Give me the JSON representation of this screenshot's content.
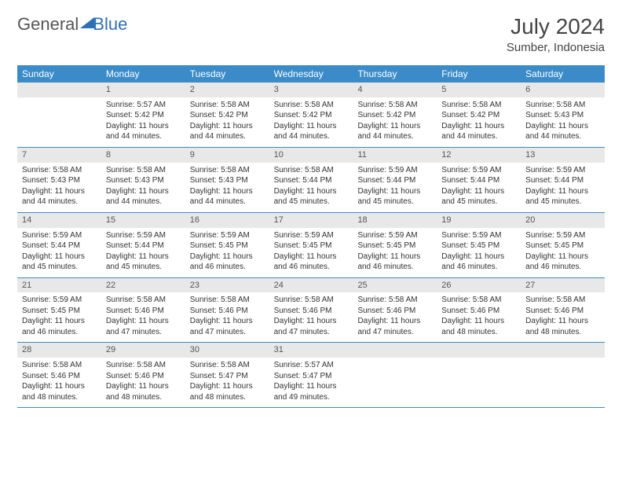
{
  "logo": {
    "general": "General",
    "blue": "Blue"
  },
  "header": {
    "title": "July 2024",
    "location": "Sumber, Indonesia"
  },
  "day_headers": [
    "Sunday",
    "Monday",
    "Tuesday",
    "Wednesday",
    "Thursday",
    "Friday",
    "Saturday"
  ],
  "colors": {
    "header_bg": "#3b8bc9",
    "header_text": "#ffffff",
    "daynum_bg": "#e8e8e8",
    "rule": "#3b8bc9",
    "logo_blue": "#2e6fb5"
  },
  "weeks": [
    [
      {
        "num": "",
        "sunrise": "",
        "sunset": "",
        "daylight1": "",
        "daylight2": "",
        "empty": true
      },
      {
        "num": "1",
        "sunrise": "Sunrise: 5:57 AM",
        "sunset": "Sunset: 5:42 PM",
        "daylight1": "Daylight: 11 hours",
        "daylight2": "and 44 minutes."
      },
      {
        "num": "2",
        "sunrise": "Sunrise: 5:58 AM",
        "sunset": "Sunset: 5:42 PM",
        "daylight1": "Daylight: 11 hours",
        "daylight2": "and 44 minutes."
      },
      {
        "num": "3",
        "sunrise": "Sunrise: 5:58 AM",
        "sunset": "Sunset: 5:42 PM",
        "daylight1": "Daylight: 11 hours",
        "daylight2": "and 44 minutes."
      },
      {
        "num": "4",
        "sunrise": "Sunrise: 5:58 AM",
        "sunset": "Sunset: 5:42 PM",
        "daylight1": "Daylight: 11 hours",
        "daylight2": "and 44 minutes."
      },
      {
        "num": "5",
        "sunrise": "Sunrise: 5:58 AM",
        "sunset": "Sunset: 5:42 PM",
        "daylight1": "Daylight: 11 hours",
        "daylight2": "and 44 minutes."
      },
      {
        "num": "6",
        "sunrise": "Sunrise: 5:58 AM",
        "sunset": "Sunset: 5:43 PM",
        "daylight1": "Daylight: 11 hours",
        "daylight2": "and 44 minutes."
      }
    ],
    [
      {
        "num": "7",
        "sunrise": "Sunrise: 5:58 AM",
        "sunset": "Sunset: 5:43 PM",
        "daylight1": "Daylight: 11 hours",
        "daylight2": "and 44 minutes."
      },
      {
        "num": "8",
        "sunrise": "Sunrise: 5:58 AM",
        "sunset": "Sunset: 5:43 PM",
        "daylight1": "Daylight: 11 hours",
        "daylight2": "and 44 minutes."
      },
      {
        "num": "9",
        "sunrise": "Sunrise: 5:58 AM",
        "sunset": "Sunset: 5:43 PM",
        "daylight1": "Daylight: 11 hours",
        "daylight2": "and 44 minutes."
      },
      {
        "num": "10",
        "sunrise": "Sunrise: 5:58 AM",
        "sunset": "Sunset: 5:44 PM",
        "daylight1": "Daylight: 11 hours",
        "daylight2": "and 45 minutes."
      },
      {
        "num": "11",
        "sunrise": "Sunrise: 5:59 AM",
        "sunset": "Sunset: 5:44 PM",
        "daylight1": "Daylight: 11 hours",
        "daylight2": "and 45 minutes."
      },
      {
        "num": "12",
        "sunrise": "Sunrise: 5:59 AM",
        "sunset": "Sunset: 5:44 PM",
        "daylight1": "Daylight: 11 hours",
        "daylight2": "and 45 minutes."
      },
      {
        "num": "13",
        "sunrise": "Sunrise: 5:59 AM",
        "sunset": "Sunset: 5:44 PM",
        "daylight1": "Daylight: 11 hours",
        "daylight2": "and 45 minutes."
      }
    ],
    [
      {
        "num": "14",
        "sunrise": "Sunrise: 5:59 AM",
        "sunset": "Sunset: 5:44 PM",
        "daylight1": "Daylight: 11 hours",
        "daylight2": "and 45 minutes."
      },
      {
        "num": "15",
        "sunrise": "Sunrise: 5:59 AM",
        "sunset": "Sunset: 5:44 PM",
        "daylight1": "Daylight: 11 hours",
        "daylight2": "and 45 minutes."
      },
      {
        "num": "16",
        "sunrise": "Sunrise: 5:59 AM",
        "sunset": "Sunset: 5:45 PM",
        "daylight1": "Daylight: 11 hours",
        "daylight2": "and 46 minutes."
      },
      {
        "num": "17",
        "sunrise": "Sunrise: 5:59 AM",
        "sunset": "Sunset: 5:45 PM",
        "daylight1": "Daylight: 11 hours",
        "daylight2": "and 46 minutes."
      },
      {
        "num": "18",
        "sunrise": "Sunrise: 5:59 AM",
        "sunset": "Sunset: 5:45 PM",
        "daylight1": "Daylight: 11 hours",
        "daylight2": "and 46 minutes."
      },
      {
        "num": "19",
        "sunrise": "Sunrise: 5:59 AM",
        "sunset": "Sunset: 5:45 PM",
        "daylight1": "Daylight: 11 hours",
        "daylight2": "and 46 minutes."
      },
      {
        "num": "20",
        "sunrise": "Sunrise: 5:59 AM",
        "sunset": "Sunset: 5:45 PM",
        "daylight1": "Daylight: 11 hours",
        "daylight2": "and 46 minutes."
      }
    ],
    [
      {
        "num": "21",
        "sunrise": "Sunrise: 5:59 AM",
        "sunset": "Sunset: 5:45 PM",
        "daylight1": "Daylight: 11 hours",
        "daylight2": "and 46 minutes."
      },
      {
        "num": "22",
        "sunrise": "Sunrise: 5:58 AM",
        "sunset": "Sunset: 5:46 PM",
        "daylight1": "Daylight: 11 hours",
        "daylight2": "and 47 minutes."
      },
      {
        "num": "23",
        "sunrise": "Sunrise: 5:58 AM",
        "sunset": "Sunset: 5:46 PM",
        "daylight1": "Daylight: 11 hours",
        "daylight2": "and 47 minutes."
      },
      {
        "num": "24",
        "sunrise": "Sunrise: 5:58 AM",
        "sunset": "Sunset: 5:46 PM",
        "daylight1": "Daylight: 11 hours",
        "daylight2": "and 47 minutes."
      },
      {
        "num": "25",
        "sunrise": "Sunrise: 5:58 AM",
        "sunset": "Sunset: 5:46 PM",
        "daylight1": "Daylight: 11 hours",
        "daylight2": "and 47 minutes."
      },
      {
        "num": "26",
        "sunrise": "Sunrise: 5:58 AM",
        "sunset": "Sunset: 5:46 PM",
        "daylight1": "Daylight: 11 hours",
        "daylight2": "and 48 minutes."
      },
      {
        "num": "27",
        "sunrise": "Sunrise: 5:58 AM",
        "sunset": "Sunset: 5:46 PM",
        "daylight1": "Daylight: 11 hours",
        "daylight2": "and 48 minutes."
      }
    ],
    [
      {
        "num": "28",
        "sunrise": "Sunrise: 5:58 AM",
        "sunset": "Sunset: 5:46 PM",
        "daylight1": "Daylight: 11 hours",
        "daylight2": "and 48 minutes."
      },
      {
        "num": "29",
        "sunrise": "Sunrise: 5:58 AM",
        "sunset": "Sunset: 5:46 PM",
        "daylight1": "Daylight: 11 hours",
        "daylight2": "and 48 minutes."
      },
      {
        "num": "30",
        "sunrise": "Sunrise: 5:58 AM",
        "sunset": "Sunset: 5:47 PM",
        "daylight1": "Daylight: 11 hours",
        "daylight2": "and 48 minutes."
      },
      {
        "num": "31",
        "sunrise": "Sunrise: 5:57 AM",
        "sunset": "Sunset: 5:47 PM",
        "daylight1": "Daylight: 11 hours",
        "daylight2": "and 49 minutes."
      },
      {
        "num": "",
        "sunrise": "",
        "sunset": "",
        "daylight1": "",
        "daylight2": "",
        "empty": true
      },
      {
        "num": "",
        "sunrise": "",
        "sunset": "",
        "daylight1": "",
        "daylight2": "",
        "empty": true
      },
      {
        "num": "",
        "sunrise": "",
        "sunset": "",
        "daylight1": "",
        "daylight2": "",
        "empty": true
      }
    ]
  ]
}
